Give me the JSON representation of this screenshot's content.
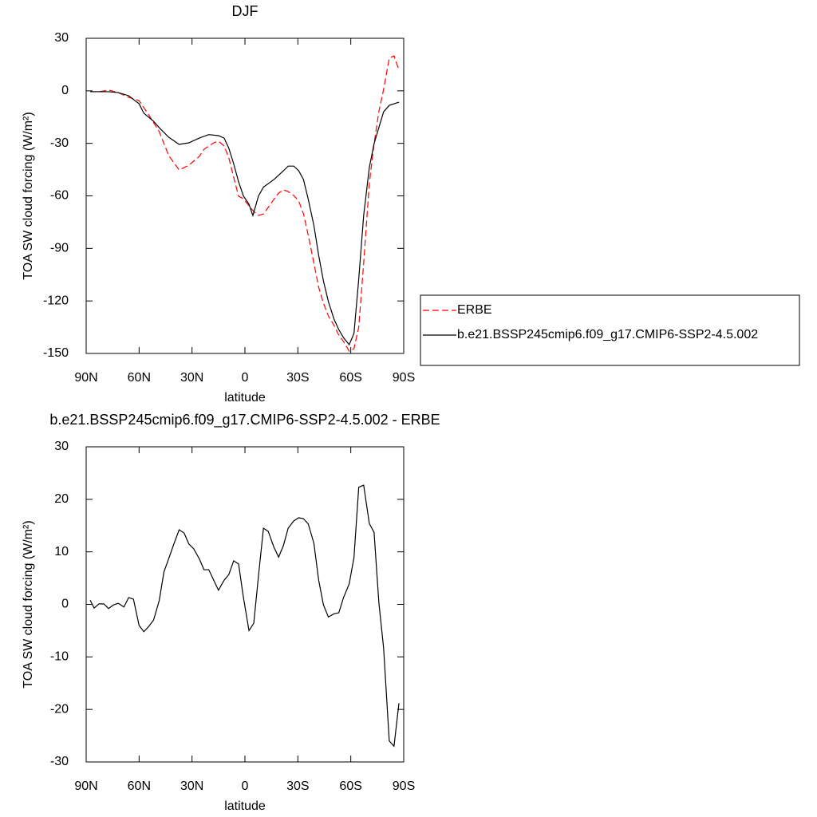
{
  "chart_data": [
    {
      "type": "line",
      "title": "DJF",
      "xlabel": "latitude",
      "ylabel": "TOA SW cloud forcing (W/m²)",
      "xlim": [
        90,
        -90
      ],
      "ylim": [
        -150,
        30
      ],
      "xticks": [
        {
          "value": 90,
          "label": "90N"
        },
        {
          "value": 60,
          "label": "60N"
        },
        {
          "value": 30,
          "label": "30N"
        },
        0,
        {
          "value": -30,
          "label": "30S"
        },
        {
          "value": -60,
          "label": "60S"
        },
        {
          "value": -90,
          "label": "90S"
        }
      ],
      "yticks": [
        -150,
        -120,
        -90,
        -60,
        -30,
        0,
        30
      ],
      "legend": "right",
      "series": [
        {
          "name": "ERBE",
          "color": "#ff0000",
          "dashed": true,
          "x": [
            87.7,
            82.7,
            77.3,
            71.8,
            65.9,
            60,
            54.5,
            48.6,
            43.2,
            37.3,
            31.8,
            25.9,
            23.2,
            17.7,
            15,
            11.8,
            9.1,
            6.4,
            3.6,
            0.9,
            -2.3,
            -5,
            -7.7,
            -10.5,
            -13.2,
            -16.4,
            -19.1,
            -21.8,
            -24.5,
            -27.7,
            -30.5,
            -33.2,
            -35.9,
            -39.1,
            -41.8,
            -44.5,
            -47.3,
            -50.5,
            -53.2,
            -55.9,
            -59.1,
            -61.8,
            -64.5,
            -67.3,
            -70.5,
            -73.2,
            -75.9,
            -78.6,
            -81.8,
            -84.5,
            -87.3
          ],
          "values": [
            -0.5,
            -0.5,
            0.4,
            -1,
            -3.7,
            -5.6,
            -13.8,
            -23.3,
            -37,
            -45.2,
            -42.5,
            -37.5,
            -33.4,
            -29.7,
            -28.8,
            -31.5,
            -38.4,
            -49.3,
            -60.2,
            -61.6,
            -65.7,
            -68.9,
            -71.2,
            -70.3,
            -66.6,
            -62,
            -58.4,
            -56.6,
            -57.5,
            -59.8,
            -63,
            -70.3,
            -82.6,
            -98.5,
            -112.2,
            -121.3,
            -128.6,
            -134,
            -139.5,
            -143.2,
            -148.7,
            -147.3,
            -135,
            -98.5,
            -53,
            -30.2,
            -12,
            0.8,
            18.6,
            20,
            11.8
          ]
        },
        {
          "name": "b.e21.BSSP245cmip6.f09_g17.CMIP6-SSP2-4.5.002",
          "color": "#000000",
          "dashed": false,
          "x": [
            87.7,
            82.7,
            77.3,
            71.8,
            65.9,
            60,
            57.3,
            51.8,
            48.6,
            43.2,
            37.3,
            31.8,
            25.9,
            20.5,
            15,
            11.8,
            9.1,
            6.4,
            3.6,
            0.9,
            -2.3,
            -4.5,
            -7.7,
            -10.5,
            -16.4,
            -21.8,
            -24.5,
            -27.7,
            -30.5,
            -33.2,
            -35.9,
            -39.1,
            -41.8,
            -44.5,
            -47.3,
            -50.5,
            -53.2,
            -55.9,
            -59.1,
            -61.8,
            -64.5,
            -67.3,
            -70.5,
            -73.2,
            -75.9,
            -78.6,
            -81.8,
            -87.3
          ],
          "values": [
            -0.5,
            -0.5,
            -0.5,
            -1,
            -2.8,
            -7.4,
            -12.8,
            -17.4,
            -21,
            -26.5,
            -30.6,
            -29.7,
            -27,
            -25,
            -25.6,
            -27,
            -32.9,
            -41.6,
            -52,
            -60,
            -64.8,
            -71.2,
            -60,
            -55,
            -50.7,
            -45.7,
            -43,
            -43,
            -45.7,
            -50.7,
            -62,
            -77,
            -94,
            -108.6,
            -120.4,
            -130.4,
            -136.4,
            -141,
            -145,
            -138.6,
            -107.6,
            -71.2,
            -43.8,
            -30.2,
            -21,
            -12,
            -8.3,
            -6.5
          ]
        }
      ]
    },
    {
      "type": "line",
      "title": "b.e21.BSSP245cmip6.f09_g17.CMIP6-SSP2-4.5.002 - ERBE",
      "xlabel": "latitude",
      "ylabel": "TOA SW cloud forcing (W/m²)",
      "xlim": [
        90,
        -90
      ],
      "ylim": [
        -30,
        30
      ],
      "xticks": [
        {
          "value": 90,
          "label": "90N"
        },
        {
          "value": 60,
          "label": "60N"
        },
        {
          "value": 30,
          "label": "30N"
        },
        0,
        {
          "value": -30,
          "label": "30S"
        },
        {
          "value": -60,
          "label": "60S"
        },
        {
          "value": -90,
          "label": "90S"
        }
      ],
      "yticks": [
        -30,
        -20,
        -10,
        0,
        10,
        20,
        30
      ],
      "series": [
        {
          "color": "#000000",
          "dashed": false,
          "x": [
            87.7,
            85.5,
            82.7,
            80,
            77.3,
            74.5,
            71.8,
            68.6,
            65.9,
            63.2,
            60,
            57.3,
            54.5,
            51.8,
            48.6,
            45.9,
            43.2,
            40.5,
            37.3,
            34.5,
            31.8,
            29.1,
            25.9,
            23.2,
            20.5,
            17.7,
            15,
            11.8,
            9.1,
            6.4,
            3.6,
            0.9,
            -2.3,
            -5,
            -7.7,
            -10.5,
            -13.2,
            -16.4,
            -19.1,
            -21.8,
            -24.5,
            -27.7,
            -30.5,
            -33.2,
            -35.9,
            -39.1,
            -41.8,
            -44.5,
            -47.3,
            -50.5,
            -53.2,
            -55.9,
            -59.1,
            -61.8,
            -64.5,
            -67.3,
            -70.5,
            -73.2,
            -75.9,
            -78.6,
            -81.8,
            -84.5,
            -87.3
          ],
          "values": [
            0.8,
            -0.7,
            0.1,
            0.1,
            -0.8,
            -0.1,
            0.2,
            -0.5,
            1.3,
            1,
            -4,
            -5.2,
            -4.2,
            -3,
            0.7,
            6.2,
            8.7,
            11.3,
            14.2,
            13.6,
            11.5,
            10.6,
            8.7,
            6.6,
            6.6,
            4.6,
            2.7,
            4.6,
            5.7,
            8.3,
            7.7,
            1.4,
            -5,
            -3.6,
            5.5,
            14.5,
            13.9,
            10.9,
            9,
            11.2,
            14.5,
            15.9,
            16.5,
            16.3,
            15.3,
            11.6,
            4.6,
            -0.1,
            -2.4,
            -1.8,
            -1.6,
            1.3,
            3.9,
            8.9,
            22.3,
            22.7,
            15.4,
            13.7,
            0.4,
            -8.3,
            -26,
            -27,
            -18.8
          ]
        }
      ]
    }
  ]
}
